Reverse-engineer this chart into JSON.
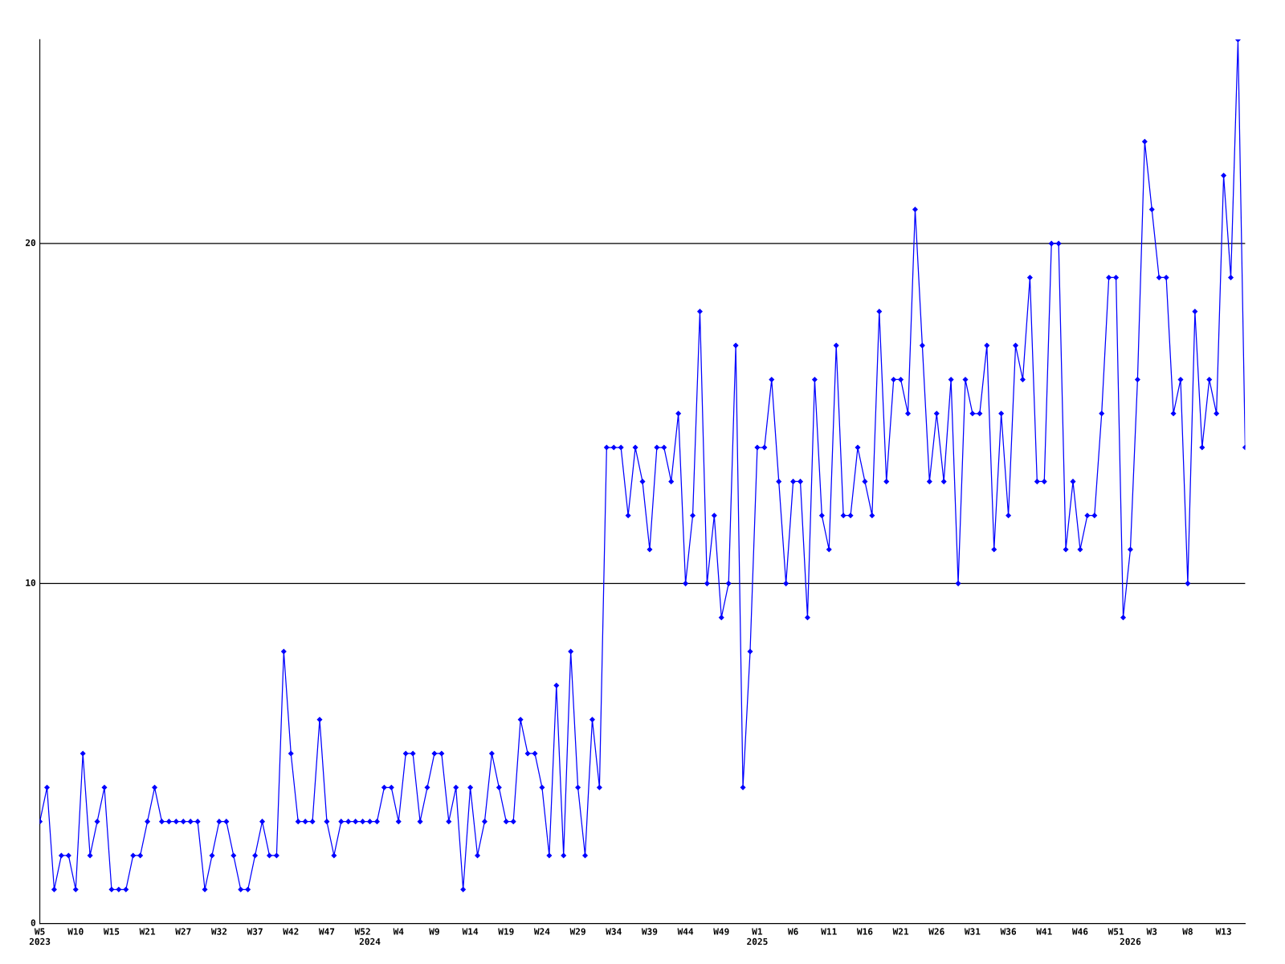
{
  "chart_data": {
    "type": "line",
    "categories": [
      "W5\n2023",
      null,
      null,
      null,
      null,
      "W10",
      null,
      null,
      null,
      null,
      "W15",
      null,
      null,
      null,
      null,
      "W21",
      null,
      null,
      null,
      null,
      "W27",
      null,
      null,
      null,
      null,
      "W32",
      null,
      null,
      null,
      null,
      "W37",
      null,
      null,
      null,
      null,
      "W42",
      null,
      null,
      null,
      null,
      "W47",
      null,
      null,
      null,
      null,
      "W52",
      "\n2024",
      null,
      null,
      null,
      "W4",
      null,
      null,
      null,
      null,
      "W9",
      null,
      null,
      null,
      null,
      "W14",
      null,
      null,
      null,
      null,
      "W19",
      null,
      null,
      null,
      null,
      "W24",
      null,
      null,
      null,
      null,
      "W29",
      null,
      null,
      null,
      null,
      "W34",
      null,
      null,
      null,
      null,
      "W39",
      null,
      null,
      null,
      null,
      "W44",
      null,
      null,
      null,
      null,
      "W49",
      null,
      null,
      null,
      null,
      "W1\n2025",
      null,
      null,
      null,
      null,
      "W6",
      null,
      null,
      null,
      null,
      "W11",
      null,
      null,
      null,
      null,
      "W16",
      null,
      null,
      null,
      null,
      "W21",
      null,
      null,
      null,
      null,
      "W26",
      null,
      null,
      null,
      null,
      "W31",
      null,
      null,
      null,
      null,
      "W36",
      null,
      null,
      null,
      null,
      "W41",
      null,
      null,
      null,
      null,
      "W46",
      null,
      null,
      null,
      null,
      "W51",
      null,
      "\n2026",
      null,
      null,
      "W3",
      null,
      null,
      null,
      null,
      "W8",
      null,
      null,
      null,
      null,
      "W13",
      null,
      null,
      null
    ],
    "series": [
      {
        "color": "#0000ff",
        "values": [
          3,
          4,
          1,
          2,
          2,
          1,
          5,
          2,
          3,
          4,
          1,
          1,
          1,
          2,
          2,
          3,
          4,
          3,
          3,
          3,
          3,
          3,
          3,
          1,
          2,
          3,
          3,
          2,
          1,
          1,
          2,
          3,
          2,
          2,
          8,
          5,
          3,
          3,
          3,
          6,
          3,
          2,
          3,
          3,
          3,
          3,
          3,
          3,
          4,
          4,
          3,
          5,
          5,
          3,
          4,
          5,
          5,
          3,
          4,
          1,
          4,
          2,
          3,
          5,
          4,
          3,
          3,
          6,
          5,
          5,
          4,
          2,
          7,
          2,
          8,
          4,
          2,
          6,
          4,
          14,
          14,
          14,
          12,
          14,
          13,
          11,
          14,
          14,
          13,
          15,
          10,
          12,
          18,
          10,
          12,
          9,
          10,
          17,
          4,
          8,
          14,
          14,
          16,
          13,
          10,
          13,
          13,
          9,
          16,
          12,
          11,
          17,
          12,
          12,
          14,
          13,
          12,
          18,
          13,
          16,
          16,
          15,
          21,
          17,
          13,
          15,
          13,
          16,
          10,
          16,
          15,
          15,
          17,
          11,
          15,
          12,
          17,
          16,
          19,
          13,
          13,
          20,
          20,
          11,
          13,
          11,
          12,
          12,
          15,
          19,
          19,
          9,
          11,
          16,
          23,
          21,
          19,
          19,
          15,
          16,
          10,
          18,
          14,
          16,
          15,
          22,
          19,
          26,
          14
        ]
      }
    ],
    "ylim": [
      0,
      26
    ],
    "yticks": [
      0,
      10,
      20
    ],
    "grid": "y",
    "marker": "diamond",
    "line_style": "solid"
  }
}
